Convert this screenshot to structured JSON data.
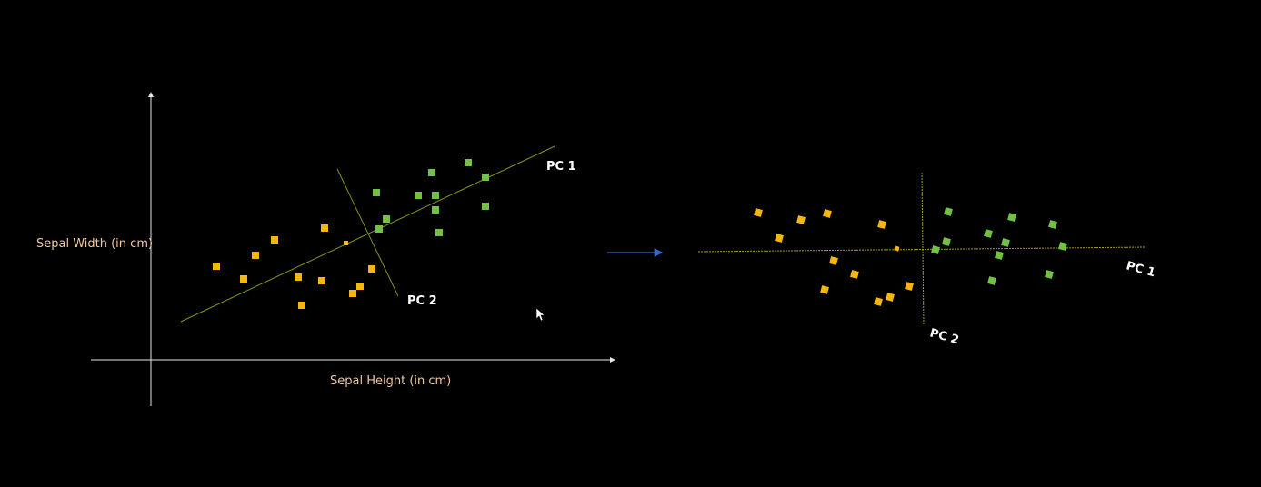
{
  "colors": {
    "background": "#000000",
    "axis": "#e6e6e6",
    "pc_line": "#8a8f1f",
    "pc_line_right": "#a89a1a",
    "class_a": "#f5b70f",
    "class_b": "#74c045",
    "axis_label": "#f0c7a2",
    "pc_label": "#ffffff",
    "arrow": "#3a67c8"
  },
  "left_plot": {
    "x_axis_label": "Sepal Height (in cm)",
    "y_axis_label": "Sepal Width (in cm)",
    "pc1_label": "PC 1",
    "pc2_label": "PC 2"
  },
  "right_plot": {
    "pc1_label": "PC 1",
    "pc2_label": "PC 2"
  },
  "transition_arrow_icon": "right-arrow-icon",
  "cursor_icon": "mouse-pointer-icon"
}
